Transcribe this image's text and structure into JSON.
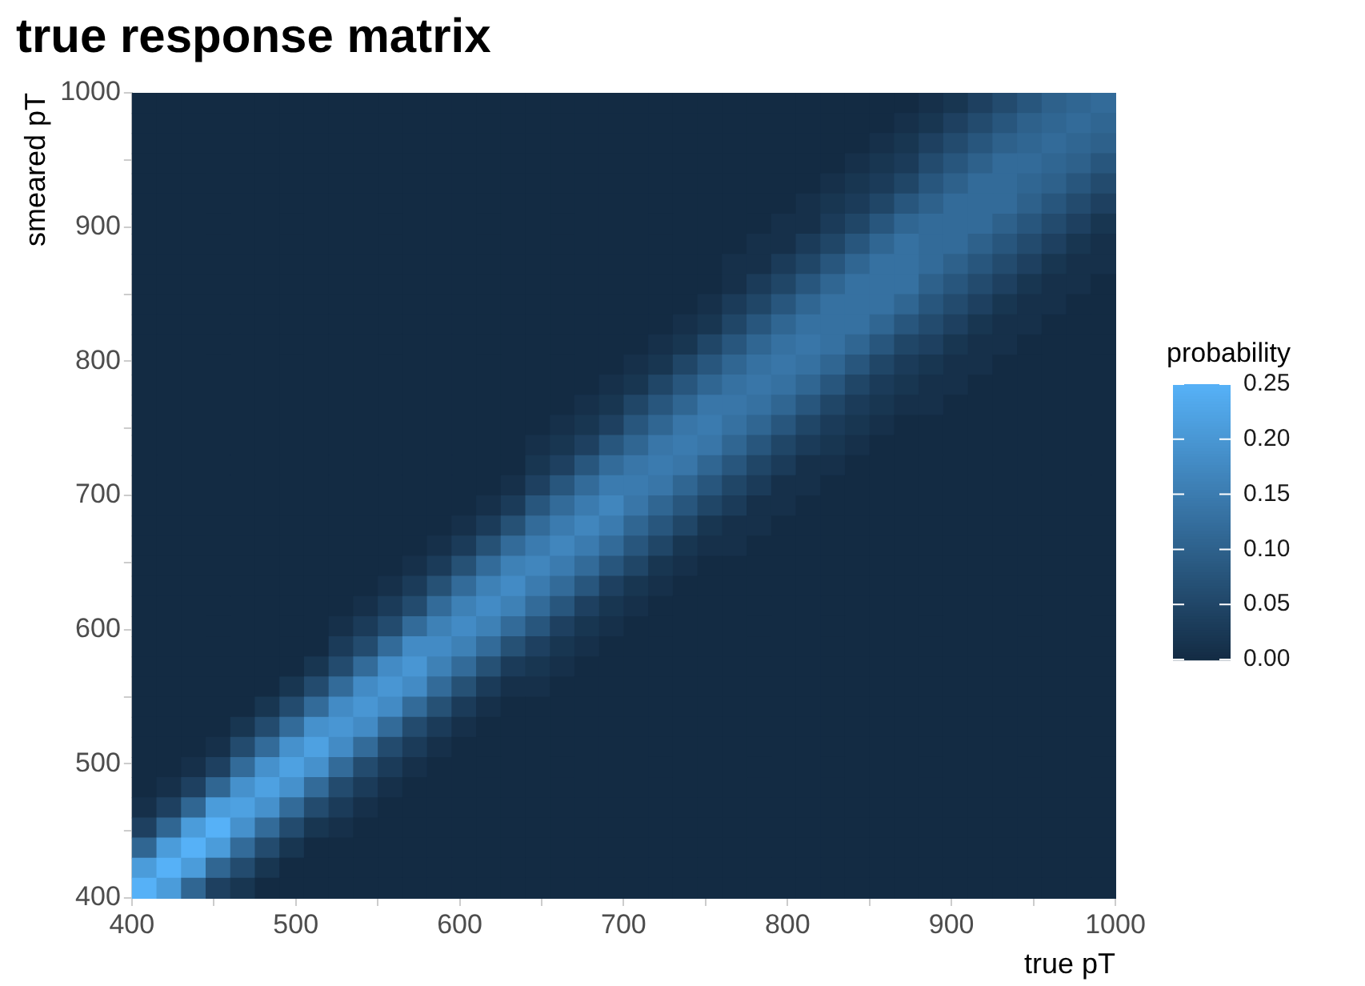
{
  "chart_data": {
    "type": "heatmap",
    "title": "true response matrix",
    "xlabel": "true pT",
    "ylabel": "smeared pT",
    "clabel": "probability",
    "x": [
      407.5,
      422.5,
      437.5,
      452.5,
      467.5,
      482.5,
      497.5,
      512.5,
      527.5,
      542.5,
      557.5,
      572.5,
      587.5,
      602.5,
      617.5,
      632.5,
      647.5,
      662.5,
      677.5,
      692.5,
      707.5,
      722.5,
      737.5,
      752.5,
      767.5,
      782.5,
      797.5,
      812.5,
      827.5,
      842.5,
      857.5,
      872.5,
      887.5,
      902.5,
      917.5,
      932.5,
      947.5,
      962.5,
      977.5,
      992.5
    ],
    "y": [
      992.5,
      977.5,
      962.5,
      947.5,
      932.5,
      917.5,
      902.5,
      887.5,
      872.5,
      857.5,
      842.5,
      827.5,
      812.5,
      797.5,
      782.5,
      767.5,
      752.5,
      737.5,
      722.5,
      707.5,
      692.5,
      677.5,
      662.5,
      647.5,
      632.5,
      617.5,
      602.5,
      587.5,
      572.5,
      557.5,
      542.5,
      527.5,
      512.5,
      497.5,
      482.5,
      467.5,
      452.5,
      437.5,
      422.5,
      407.5
    ],
    "xlim": [
      400,
      1000
    ],
    "ylim": [
      400,
      1000
    ],
    "xticks": [
      400,
      {
        "value": 450,
        "label": null
      },
      500,
      {
        "value": 550,
        "label": null
      },
      600,
      {
        "value": 650,
        "label": null
      },
      700,
      {
        "value": 750,
        "label": null
      },
      800,
      {
        "value": 850,
        "label": null
      },
      900,
      {
        "value": 950,
        "label": null
      },
      1000
    ],
    "yticks": [
      400,
      {
        "value": 450,
        "label": null
      },
      500,
      {
        "value": 550,
        "label": null
      },
      600,
      {
        "value": 650,
        "label": null
      },
      700,
      {
        "value": 750,
        "label": null
      },
      800,
      {
        "value": 850,
        "label": null
      },
      900,
      {
        "value": 950,
        "label": null
      },
      1000
    ],
    "clim": [
      0,
      0.25
    ],
    "cticks": [
      {
        "value": 0,
        "label": "0.00"
      },
      {
        "value": 0.05,
        "label": "0.05"
      },
      {
        "value": 0.1,
        "label": "0.10"
      },
      {
        "value": 0.15,
        "label": "0.15"
      },
      {
        "value": 0.2,
        "label": "0.20"
      },
      {
        "value": 0.25,
        "label": "0.25"
      }
    ],
    "colors": [
      "#132b43",
      "#56b1f7"
    ],
    "cells": [
      [
        0,
        0,
        0,
        0,
        0,
        0,
        0,
        0,
        0,
        0,
        0,
        0,
        0,
        0,
        0,
        0,
        0,
        0,
        0,
        0,
        0,
        0,
        0,
        0,
        0,
        0,
        0,
        0,
        0,
        0,
        0,
        0,
        0.01,
        0.02,
        0.04,
        0.06,
        0.08,
        0.1,
        0.11,
        0.12
      ],
      [
        0,
        0,
        0,
        0,
        0,
        0,
        0,
        0,
        0,
        0,
        0,
        0,
        0,
        0,
        0,
        0,
        0,
        0,
        0,
        0,
        0,
        0,
        0,
        0,
        0,
        0,
        0,
        0,
        0,
        0,
        0,
        0.01,
        0.02,
        0.04,
        0.06,
        0.08,
        0.1,
        0.11,
        0.12,
        0.11
      ],
      [
        0,
        0,
        0,
        0,
        0,
        0,
        0,
        0,
        0,
        0,
        0,
        0,
        0,
        0,
        0,
        0,
        0,
        0,
        0,
        0,
        0,
        0,
        0,
        0,
        0,
        0,
        0,
        0,
        0,
        0,
        0.01,
        0.02,
        0.04,
        0.06,
        0.08,
        0.1,
        0.11,
        0.12,
        0.11,
        0.1
      ],
      [
        0,
        0,
        0,
        0,
        0,
        0,
        0,
        0,
        0,
        0,
        0,
        0,
        0,
        0,
        0,
        0,
        0,
        0,
        0,
        0,
        0,
        0,
        0,
        0,
        0,
        0,
        0,
        0,
        0,
        0.01,
        0.02,
        0.03,
        0.06,
        0.08,
        0.1,
        0.12,
        0.12,
        0.11,
        0.1,
        0.08
      ],
      [
        0,
        0,
        0,
        0,
        0,
        0,
        0,
        0,
        0,
        0,
        0,
        0,
        0,
        0,
        0,
        0,
        0,
        0,
        0,
        0,
        0,
        0,
        0,
        0,
        0,
        0,
        0,
        0,
        0.01,
        0.02,
        0.03,
        0.05,
        0.08,
        0.1,
        0.12,
        0.12,
        0.11,
        0.1,
        0.08,
        0.06
      ],
      [
        0,
        0,
        0,
        0,
        0,
        0,
        0,
        0,
        0,
        0,
        0,
        0,
        0,
        0,
        0,
        0,
        0,
        0,
        0,
        0,
        0,
        0,
        0,
        0,
        0,
        0,
        0,
        0.01,
        0.02,
        0.03,
        0.05,
        0.08,
        0.1,
        0.12,
        0.12,
        0.12,
        0.1,
        0.08,
        0.06,
        0.04
      ],
      [
        0,
        0,
        0,
        0,
        0,
        0,
        0,
        0,
        0,
        0,
        0,
        0,
        0,
        0,
        0,
        0,
        0,
        0,
        0,
        0,
        0,
        0,
        0,
        0,
        0,
        0,
        0.01,
        0.01,
        0.03,
        0.05,
        0.08,
        0.11,
        0.12,
        0.12,
        0.12,
        0.1,
        0.08,
        0.06,
        0.04,
        0.02
      ],
      [
        0,
        0,
        0,
        0,
        0,
        0,
        0,
        0,
        0,
        0,
        0,
        0,
        0,
        0,
        0,
        0,
        0,
        0,
        0,
        0,
        0,
        0,
        0,
        0,
        0,
        0.01,
        0.01,
        0.03,
        0.05,
        0.08,
        0.11,
        0.13,
        0.12,
        0.12,
        0.1,
        0.08,
        0.06,
        0.04,
        0.02,
        0.01
      ],
      [
        0,
        0,
        0,
        0,
        0,
        0,
        0,
        0,
        0,
        0,
        0,
        0,
        0,
        0,
        0,
        0,
        0,
        0,
        0,
        0,
        0,
        0,
        0,
        0,
        0.01,
        0.01,
        0.03,
        0.05,
        0.08,
        0.11,
        0.13,
        0.13,
        0.12,
        0.1,
        0.08,
        0.06,
        0.04,
        0.02,
        0.01,
        0.01
      ],
      [
        0,
        0,
        0,
        0,
        0,
        0,
        0,
        0,
        0,
        0,
        0,
        0,
        0,
        0,
        0,
        0,
        0,
        0,
        0,
        0,
        0,
        0,
        0,
        0,
        0.01,
        0.03,
        0.05,
        0.08,
        0.11,
        0.13,
        0.13,
        0.13,
        0.1,
        0.08,
        0.06,
        0.04,
        0.02,
        0.01,
        0.01,
        0
      ],
      [
        0,
        0,
        0,
        0,
        0,
        0,
        0,
        0,
        0,
        0,
        0,
        0,
        0,
        0,
        0,
        0,
        0,
        0,
        0,
        0,
        0,
        0,
        0,
        0.01,
        0.03,
        0.05,
        0.08,
        0.11,
        0.13,
        0.13,
        0.13,
        0.11,
        0.08,
        0.06,
        0.04,
        0.02,
        0.01,
        0.01,
        0,
        0
      ],
      [
        0,
        0,
        0,
        0,
        0,
        0,
        0,
        0,
        0,
        0,
        0,
        0,
        0,
        0,
        0,
        0,
        0,
        0,
        0,
        0,
        0,
        0,
        0.01,
        0.02,
        0.05,
        0.08,
        0.11,
        0.13,
        0.13,
        0.13,
        0.11,
        0.08,
        0.06,
        0.04,
        0.02,
        0.01,
        0.01,
        0,
        0,
        0
      ],
      [
        0,
        0,
        0,
        0,
        0,
        0,
        0,
        0,
        0,
        0,
        0,
        0,
        0,
        0,
        0,
        0,
        0,
        0,
        0,
        0,
        0,
        0.01,
        0.02,
        0.05,
        0.08,
        0.11,
        0.13,
        0.14,
        0.13,
        0.11,
        0.08,
        0.05,
        0.04,
        0.02,
        0.01,
        0.01,
        0,
        0,
        0,
        0
      ],
      [
        0,
        0,
        0,
        0,
        0,
        0,
        0,
        0,
        0,
        0,
        0,
        0,
        0,
        0,
        0,
        0,
        0,
        0,
        0,
        0,
        0.01,
        0.02,
        0.05,
        0.08,
        0.11,
        0.13,
        0.14,
        0.13,
        0.11,
        0.08,
        0.05,
        0.03,
        0.02,
        0.01,
        0.01,
        0,
        0,
        0,
        0,
        0
      ],
      [
        0,
        0,
        0,
        0,
        0,
        0,
        0,
        0,
        0,
        0,
        0,
        0,
        0,
        0,
        0,
        0,
        0,
        0,
        0,
        0.01,
        0.02,
        0.05,
        0.08,
        0.11,
        0.13,
        0.14,
        0.13,
        0.11,
        0.08,
        0.05,
        0.03,
        0.02,
        0.01,
        0.01,
        0,
        0,
        0,
        0,
        0,
        0
      ],
      [
        0,
        0,
        0,
        0,
        0,
        0,
        0,
        0,
        0,
        0,
        0,
        0,
        0,
        0,
        0,
        0,
        0,
        0,
        0.01,
        0.02,
        0.05,
        0.08,
        0.11,
        0.14,
        0.14,
        0.13,
        0.11,
        0.08,
        0.05,
        0.03,
        0.02,
        0.01,
        0.01,
        0,
        0,
        0,
        0,
        0,
        0,
        0
      ],
      [
        0,
        0,
        0,
        0,
        0,
        0,
        0,
        0,
        0,
        0,
        0,
        0,
        0,
        0,
        0,
        0,
        0,
        0.01,
        0.02,
        0.04,
        0.08,
        0.11,
        0.14,
        0.15,
        0.13,
        0.11,
        0.08,
        0.05,
        0.03,
        0.02,
        0.01,
        0,
        0,
        0,
        0,
        0,
        0,
        0,
        0,
        0
      ],
      [
        0,
        0,
        0,
        0,
        0,
        0,
        0,
        0,
        0,
        0,
        0,
        0,
        0,
        0,
        0,
        0,
        0.01,
        0.02,
        0.04,
        0.08,
        0.11,
        0.14,
        0.15,
        0.14,
        0.11,
        0.08,
        0.05,
        0.03,
        0.02,
        0.01,
        0,
        0,
        0,
        0,
        0,
        0,
        0,
        0,
        0,
        0
      ],
      [
        0,
        0,
        0,
        0,
        0,
        0,
        0,
        0,
        0,
        0,
        0,
        0,
        0,
        0,
        0,
        0,
        0.02,
        0.04,
        0.08,
        0.12,
        0.14,
        0.15,
        0.14,
        0.11,
        0.08,
        0.05,
        0.03,
        0.01,
        0.01,
        0,
        0,
        0,
        0,
        0,
        0,
        0,
        0,
        0,
        0,
        0
      ],
      [
        0,
        0,
        0,
        0,
        0,
        0,
        0,
        0,
        0,
        0,
        0,
        0,
        0,
        0,
        0,
        0.01,
        0.04,
        0.08,
        0.12,
        0.15,
        0.15,
        0.14,
        0.11,
        0.08,
        0.05,
        0.03,
        0.01,
        0.01,
        0,
        0,
        0,
        0,
        0,
        0,
        0,
        0,
        0,
        0,
        0,
        0
      ],
      [
        0,
        0,
        0,
        0,
        0,
        0,
        0,
        0,
        0,
        0,
        0,
        0,
        0,
        0,
        0.01,
        0.03,
        0.08,
        0.12,
        0.15,
        0.17,
        0.14,
        0.11,
        0.08,
        0.05,
        0.03,
        0.01,
        0.01,
        0,
        0,
        0,
        0,
        0,
        0,
        0,
        0,
        0,
        0,
        0,
        0,
        0
      ],
      [
        0,
        0,
        0,
        0,
        0,
        0,
        0,
        0,
        0,
        0,
        0,
        0,
        0,
        0.01,
        0.03,
        0.07,
        0.12,
        0.15,
        0.17,
        0.15,
        0.11,
        0.08,
        0.05,
        0.02,
        0.01,
        0.01,
        0,
        0,
        0,
        0,
        0,
        0,
        0,
        0,
        0,
        0,
        0,
        0,
        0,
        0
      ],
      [
        0,
        0,
        0,
        0,
        0,
        0,
        0,
        0,
        0,
        0,
        0,
        0,
        0.01,
        0.03,
        0.07,
        0.12,
        0.15,
        0.17,
        0.15,
        0.12,
        0.08,
        0.05,
        0.02,
        0.01,
        0.01,
        0,
        0,
        0,
        0,
        0,
        0,
        0,
        0,
        0,
        0,
        0,
        0,
        0,
        0,
        0
      ],
      [
        0,
        0,
        0,
        0,
        0,
        0,
        0,
        0,
        0,
        0,
        0,
        0.01,
        0.03,
        0.07,
        0.12,
        0.16,
        0.17,
        0.15,
        0.12,
        0.08,
        0.05,
        0.02,
        0.01,
        0,
        0,
        0,
        0,
        0,
        0,
        0,
        0,
        0,
        0,
        0,
        0,
        0,
        0,
        0,
        0,
        0
      ],
      [
        0,
        0,
        0,
        0,
        0,
        0,
        0,
        0,
        0,
        0,
        0.01,
        0.03,
        0.07,
        0.12,
        0.16,
        0.18,
        0.15,
        0.12,
        0.08,
        0.04,
        0.02,
        0.01,
        0,
        0,
        0,
        0,
        0,
        0,
        0,
        0,
        0,
        0,
        0,
        0,
        0,
        0,
        0,
        0,
        0,
        0
      ],
      [
        0,
        0,
        0,
        0,
        0,
        0,
        0,
        0,
        0,
        0.01,
        0.03,
        0.06,
        0.12,
        0.16,
        0.18,
        0.16,
        0.12,
        0.08,
        0.04,
        0.02,
        0.01,
        0,
        0,
        0,
        0,
        0,
        0,
        0,
        0,
        0,
        0,
        0,
        0,
        0,
        0,
        0,
        0,
        0,
        0,
        0
      ],
      [
        0,
        0,
        0,
        0,
        0,
        0,
        0,
        0,
        0.01,
        0.03,
        0.06,
        0.12,
        0.16,
        0.18,
        0.16,
        0.12,
        0.08,
        0.04,
        0.02,
        0.01,
        0,
        0,
        0,
        0,
        0,
        0,
        0,
        0,
        0,
        0,
        0,
        0,
        0,
        0,
        0,
        0,
        0,
        0,
        0,
        0
      ],
      [
        0,
        0,
        0,
        0,
        0,
        0,
        0,
        0,
        0.03,
        0.06,
        0.12,
        0.18,
        0.18,
        0.16,
        0.12,
        0.07,
        0.04,
        0.02,
        0.01,
        0,
        0,
        0,
        0,
        0,
        0,
        0,
        0,
        0,
        0,
        0,
        0,
        0,
        0,
        0,
        0,
        0,
        0,
        0,
        0,
        0
      ],
      [
        0,
        0,
        0,
        0,
        0,
        0,
        0,
        0.02,
        0.06,
        0.12,
        0.18,
        0.2,
        0.16,
        0.12,
        0.07,
        0.03,
        0.02,
        0.01,
        0,
        0,
        0,
        0,
        0,
        0,
        0,
        0,
        0,
        0,
        0,
        0,
        0,
        0,
        0,
        0,
        0,
        0,
        0,
        0,
        0,
        0
      ],
      [
        0,
        0,
        0,
        0,
        0,
        0,
        0.02,
        0.06,
        0.12,
        0.18,
        0.2,
        0.18,
        0.12,
        0.07,
        0.03,
        0.01,
        0.01,
        0,
        0,
        0,
        0,
        0,
        0,
        0,
        0,
        0,
        0,
        0,
        0,
        0,
        0,
        0,
        0,
        0,
        0,
        0,
        0,
        0,
        0,
        0
      ],
      [
        0,
        0,
        0,
        0,
        0,
        0.02,
        0.06,
        0.12,
        0.18,
        0.2,
        0.18,
        0.12,
        0.07,
        0.03,
        0.01,
        0,
        0,
        0,
        0,
        0,
        0,
        0,
        0,
        0,
        0,
        0,
        0,
        0,
        0,
        0,
        0,
        0,
        0,
        0,
        0,
        0,
        0,
        0,
        0,
        0
      ],
      [
        0,
        0,
        0,
        0,
        0.02,
        0.06,
        0.12,
        0.19,
        0.2,
        0.18,
        0.12,
        0.06,
        0.03,
        0.01,
        0,
        0,
        0,
        0,
        0,
        0,
        0,
        0,
        0,
        0,
        0,
        0,
        0,
        0,
        0,
        0,
        0,
        0,
        0,
        0,
        0,
        0,
        0,
        0,
        0,
        0
      ],
      [
        0,
        0,
        0,
        0.01,
        0.06,
        0.12,
        0.19,
        0.22,
        0.18,
        0.12,
        0.06,
        0.03,
        0.01,
        0,
        0,
        0,
        0,
        0,
        0,
        0,
        0,
        0,
        0,
        0,
        0,
        0,
        0,
        0,
        0,
        0,
        0,
        0,
        0,
        0,
        0,
        0,
        0,
        0,
        0,
        0
      ],
      [
        0,
        0,
        0.01,
        0.04,
        0.12,
        0.19,
        0.22,
        0.19,
        0.12,
        0.06,
        0.03,
        0.01,
        0,
        0,
        0,
        0,
        0,
        0,
        0,
        0,
        0,
        0,
        0,
        0,
        0,
        0,
        0,
        0,
        0,
        0,
        0,
        0,
        0,
        0,
        0,
        0,
        0,
        0,
        0,
        0
      ],
      [
        0,
        0.01,
        0.04,
        0.11,
        0.19,
        0.22,
        0.19,
        0.12,
        0.06,
        0.03,
        0.01,
        0,
        0,
        0,
        0,
        0,
        0,
        0,
        0,
        0,
        0,
        0,
        0,
        0,
        0,
        0,
        0,
        0,
        0,
        0,
        0,
        0,
        0,
        0,
        0,
        0,
        0,
        0,
        0,
        0
      ],
      [
        0.01,
        0.04,
        0.11,
        0.21,
        0.22,
        0.19,
        0.12,
        0.06,
        0.03,
        0.01,
        0,
        0,
        0,
        0,
        0,
        0,
        0,
        0,
        0,
        0,
        0,
        0,
        0,
        0,
        0,
        0,
        0,
        0,
        0,
        0,
        0,
        0,
        0,
        0,
        0,
        0,
        0,
        0,
        0,
        0
      ],
      [
        0.04,
        0.11,
        0.21,
        0.25,
        0.19,
        0.12,
        0.06,
        0.02,
        0.01,
        0,
        0,
        0,
        0,
        0,
        0,
        0,
        0,
        0,
        0,
        0,
        0,
        0,
        0,
        0,
        0,
        0,
        0,
        0,
        0,
        0,
        0,
        0,
        0,
        0,
        0,
        0,
        0,
        0,
        0,
        0
      ],
      [
        0.11,
        0.21,
        0.25,
        0.21,
        0.12,
        0.06,
        0.02,
        0,
        0,
        0,
        0,
        0,
        0,
        0,
        0,
        0,
        0,
        0,
        0,
        0,
        0,
        0,
        0,
        0,
        0,
        0,
        0,
        0,
        0,
        0,
        0,
        0,
        0,
        0,
        0,
        0,
        0,
        0,
        0,
        0
      ],
      [
        0.21,
        0.25,
        0.21,
        0.11,
        0.06,
        0.02,
        0,
        0,
        0,
        0,
        0,
        0,
        0,
        0,
        0,
        0,
        0,
        0,
        0,
        0,
        0,
        0,
        0,
        0,
        0,
        0,
        0,
        0,
        0,
        0,
        0,
        0,
        0,
        0,
        0,
        0,
        0,
        0,
        0,
        0
      ],
      [
        0.25,
        0.21,
        0.11,
        0.04,
        0.02,
        0,
        0,
        0,
        0,
        0,
        0,
        0,
        0,
        0,
        0,
        0,
        0,
        0,
        0,
        0,
        0,
        0,
        0,
        0,
        0,
        0,
        0,
        0,
        0,
        0,
        0,
        0,
        0,
        0,
        0,
        0,
        0,
        0,
        0,
        0
      ]
    ]
  }
}
